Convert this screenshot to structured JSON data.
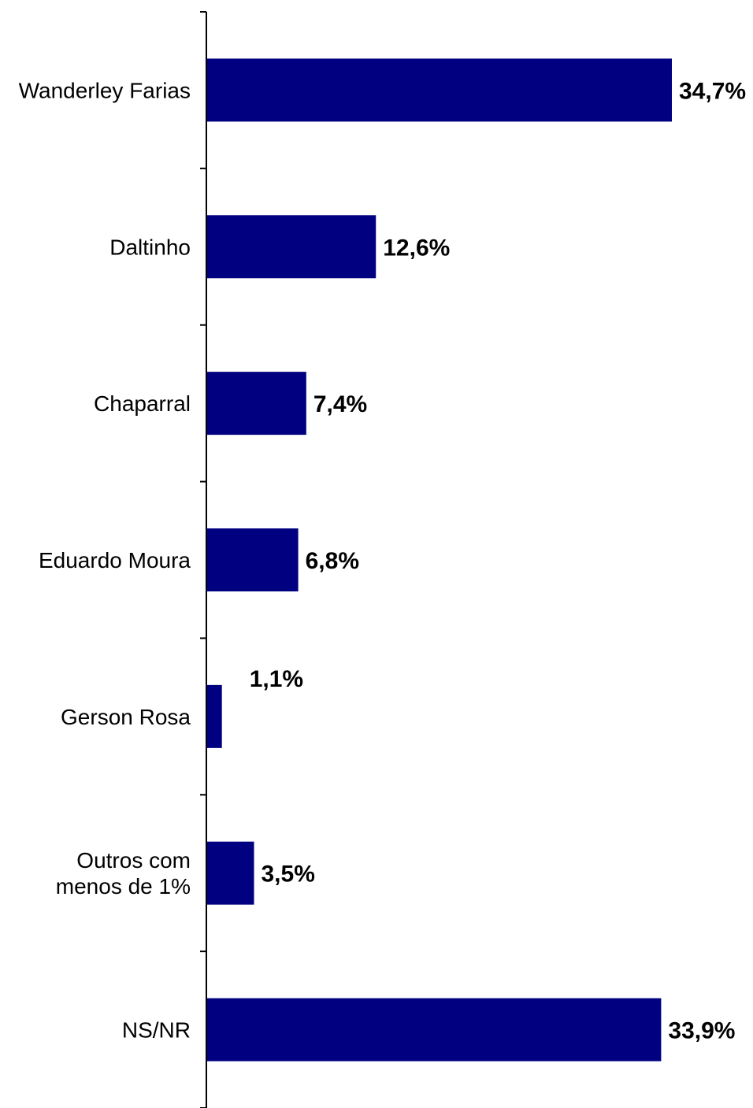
{
  "chart_data": {
    "type": "bar",
    "orientation": "horizontal",
    "title": "",
    "xlabel": "",
    "ylabel": "",
    "categories": [
      "Wanderley Farias",
      "Daltinho",
      "Chaparral",
      "Eduardo Moura",
      "Gerson Rosa",
      "Outros com\nmenos de 1%",
      "NS/NR"
    ],
    "values": [
      34.7,
      12.6,
      7.4,
      6.8,
      1.1,
      3.5,
      33.9
    ],
    "value_labels": [
      "34,7%",
      "12,6%",
      "7,4%",
      "6,8%",
      "1,1%",
      "3,5%",
      "33,9%"
    ],
    "xlim": [
      0,
      37.5
    ],
    "grid": false,
    "legend": "none",
    "bar_color": "#000080"
  }
}
